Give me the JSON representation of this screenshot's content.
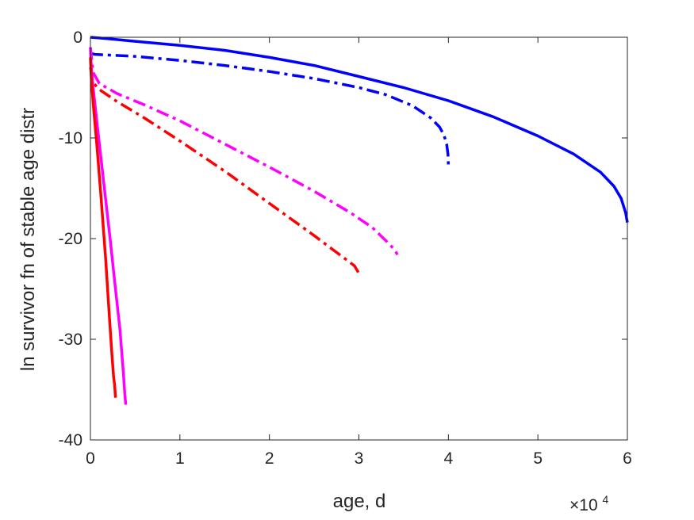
{
  "chart_data": {
    "type": "line",
    "title": "",
    "xlabel": "age, d",
    "ylabel": "ln survivor fn of stable age distr",
    "x_exponent_label": {
      "base": "×10",
      "exponent": "4"
    },
    "xlim": [
      0,
      60000
    ],
    "ylim": [
      -40,
      0
    ],
    "x_ticks": [
      0,
      10000,
      20000,
      30000,
      40000,
      50000,
      60000
    ],
    "x_tick_labels": [
      "0",
      "1",
      "2",
      "3",
      "4",
      "5",
      "6"
    ],
    "y_ticks": [
      -40,
      -30,
      -20,
      -10,
      0
    ],
    "y_tick_labels": [
      "-40",
      "-30",
      "-20",
      "-10",
      "0"
    ],
    "grid": false,
    "legend": "none",
    "series": [
      {
        "color": "#0000ff",
        "style": "solid",
        "x": [
          0,
          2000,
          5000,
          10000,
          15000,
          20000,
          25000,
          30000,
          35000,
          40000,
          45000,
          50000,
          54000,
          57000,
          58500,
          59300,
          59800,
          60000
        ],
        "y": [
          0,
          -0.15,
          -0.4,
          -0.8,
          -1.3,
          -2.0,
          -2.8,
          -3.9,
          -5.0,
          -6.3,
          -7.9,
          -9.8,
          -11.6,
          -13.4,
          -14.8,
          -16.0,
          -17.4,
          -18.4
        ]
      },
      {
        "color": "#0000ff",
        "style": "dashdot",
        "x": [
          0,
          500,
          5000,
          10000,
          15000,
          20000,
          25000,
          30000,
          33000,
          36000,
          38000,
          39000,
          39500,
          39800,
          39950,
          40000
        ],
        "y": [
          -1.6,
          -1.7,
          -1.9,
          -2.3,
          -2.8,
          -3.4,
          -4.1,
          -5.0,
          -5.7,
          -6.8,
          -8.0,
          -8.9,
          -9.7,
          -10.6,
          -11.6,
          -12.7
        ]
      },
      {
        "color": "#ff00ff",
        "style": "dashdot",
        "x": [
          0,
          300,
          1000,
          3000,
          6000,
          10000,
          15000,
          20000,
          25000,
          29000,
          31500,
          33000,
          34000,
          34300
        ],
        "y": [
          -1.0,
          -3.5,
          -4.6,
          -5.6,
          -6.7,
          -8.3,
          -10.6,
          -12.9,
          -15.3,
          -17.4,
          -18.9,
          -20.2,
          -21.1,
          -21.6
        ]
      },
      {
        "color": "#ff0000",
        "style": "dashdot",
        "x": [
          0,
          300,
          1000,
          3000,
          6000,
          10000,
          15000,
          20000,
          25000,
          28000,
          29500,
          30100
        ],
        "y": [
          -3.0,
          -4.5,
          -5.2,
          -6.4,
          -8.0,
          -10.3,
          -13.3,
          -16.5,
          -19.7,
          -21.7,
          -22.7,
          -23.6
        ]
      },
      {
        "color": "#ff00ff",
        "style": "solid",
        "x": [
          0,
          100,
          300,
          800,
          1500,
          2200,
          2800,
          3300,
          3700,
          3850,
          3950
        ],
        "y": [
          -1.0,
          -3.0,
          -5.0,
          -9.0,
          -14.5,
          -20.0,
          -25.0,
          -29.0,
          -33.5,
          -35.5,
          -36.5
        ]
      },
      {
        "color": "#ff0000",
        "style": "solid",
        "x": [
          0,
          100,
          300,
          700,
          1200,
          1700,
          2100,
          2400,
          2600,
          2700,
          2800
        ],
        "y": [
          -2.0,
          -4.0,
          -6.5,
          -10.5,
          -16.0,
          -22.0,
          -27.5,
          -31.5,
          -33.8,
          -34.5,
          -35.8
        ]
      }
    ]
  }
}
